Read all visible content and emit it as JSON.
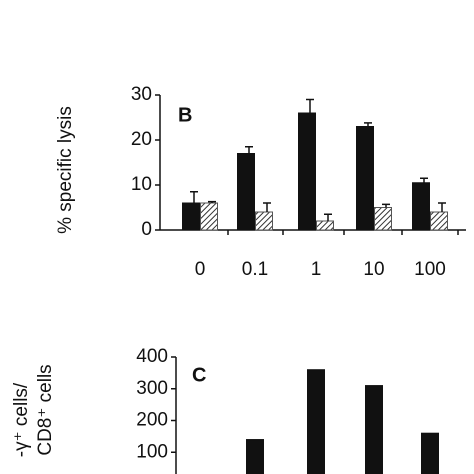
{
  "charts": [
    {
      "type": "bar",
      "panel": "B",
      "y_label": "% specific lysis",
      "categories": [
        "0",
        "0.1",
        "1",
        "10",
        "100"
      ],
      "ylim": [
        0,
        30
      ],
      "yticks": [
        0,
        10,
        20,
        30
      ],
      "series": [
        {
          "color": "#111111",
          "pattern": "solid",
          "values": [
            6,
            17,
            26,
            23,
            10.5
          ],
          "errors": [
            2.5,
            1.5,
            3,
            0.8,
            1
          ]
        },
        {
          "color": "#555555",
          "pattern": "hatched",
          "values": [
            6,
            4,
            2,
            5,
            4
          ],
          "errors": [
            0.3,
            2,
            1.5,
            0.7,
            2
          ]
        }
      ]
    },
    {
      "type": "bar",
      "panel": "C",
      "y_label": [
        "-γ⁺ cells/",
        "CD8⁺ cells"
      ],
      "ylim": [
        0,
        400
      ],
      "yticks": [
        100,
        200,
        300,
        400
      ],
      "series": [
        {
          "color": "#111111",
          "values": [
            140,
            360,
            310,
            160
          ]
        }
      ]
    }
  ]
}
